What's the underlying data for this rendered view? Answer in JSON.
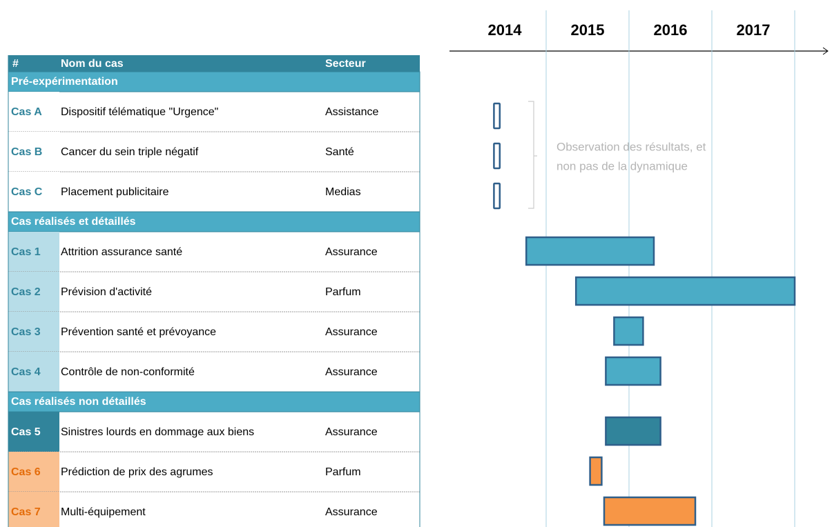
{
  "table": {
    "header": [
      "#",
      "Nom du cas",
      "Secteur"
    ],
    "sections": [
      {
        "title": "Pré-expérimentation",
        "rows": [
          {
            "id": "Cas A",
            "name": "Dispositif télématique \"Urgence\"",
            "sector": "Assistance",
            "start": 2014.37,
            "end": 2014.44,
            "color": "#ffffff"
          },
          {
            "id": "Cas B",
            "name": "Cancer du sein triple négatif",
            "sector": "Santé",
            "start": 2014.37,
            "end": 2014.44,
            "color": "#ffffff"
          },
          {
            "id": "Cas C",
            "name": "Placement publicitaire",
            "sector": "Medias",
            "start": 2014.37,
            "end": 2014.44,
            "color": "#ffffff"
          }
        ]
      },
      {
        "title": "Cas réalisés et détaillés",
        "rows": [
          {
            "id": "Cas 1",
            "name": "Attrition assurance santé",
            "sector": "Assurance",
            "start": 2014.76,
            "end": 2016.3,
            "color": "#4bacc6"
          },
          {
            "id": "Cas 2",
            "name": "Prévision d'activité",
            "sector": "Parfum",
            "start": 2015.36,
            "end": 2018.0,
            "color": "#4bacc6"
          },
          {
            "id": "Cas 3",
            "name": "Prévention santé et prévoyance",
            "sector": "Assurance",
            "start": 2015.82,
            "end": 2016.17,
            "color": "#4bacc6"
          },
          {
            "id": "Cas 4",
            "name": "Contrôle de non-conformité",
            "sector": "Assurance",
            "start": 2015.72,
            "end": 2016.38,
            "color": "#4bacc6"
          }
        ]
      },
      {
        "title": "Cas réalisés non détaillés",
        "rows": [
          {
            "id": "Cas 5",
            "name": "Sinistres lourds en dommage aux biens",
            "sector": "Assurance",
            "start": 2015.72,
            "end": 2016.38,
            "color": "#31849b"
          },
          {
            "id": "Cas 6",
            "name": "Prédiction de prix des agrumes",
            "sector": "Parfum",
            "start": 2015.53,
            "end": 2015.67,
            "color": "#f79646"
          },
          {
            "id": "Cas 7",
            "name": "Multi-équipement",
            "sector": "Assurance",
            "start": 2015.7,
            "end": 2016.8,
            "color": "#f79646"
          }
        ]
      }
    ]
  },
  "timeline": {
    "years": [
      2014,
      2015,
      2016,
      2017
    ],
    "annotation": [
      "Observation des résultats, et",
      "non pas de la dynamique"
    ]
  }
}
